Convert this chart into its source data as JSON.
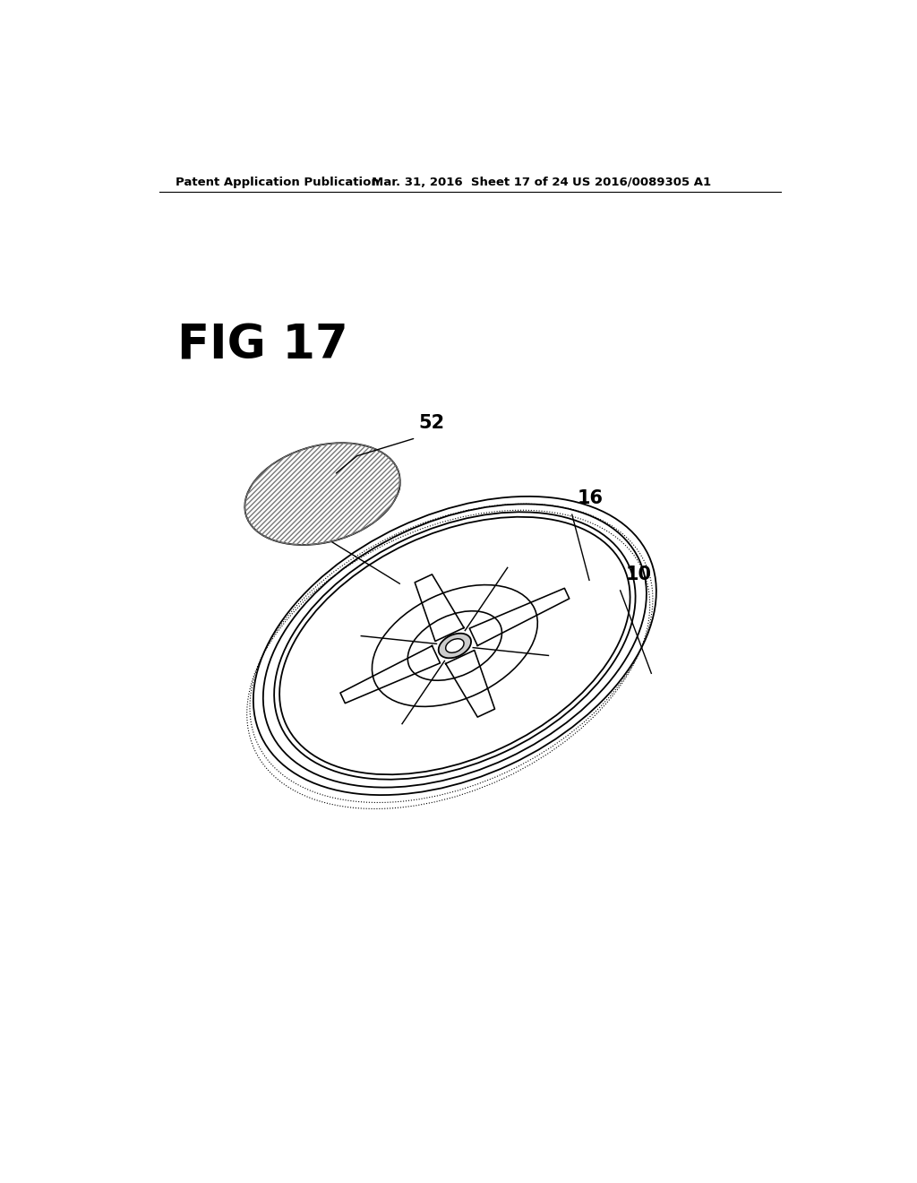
{
  "background_color": "#ffffff",
  "header_left": "Patent Application Publication",
  "header_center": "Mar. 31, 2016  Sheet 17 of 24",
  "header_right": "US 2016/0089305 A1",
  "fig_label": "FIG 17",
  "line_color": "#000000",
  "hatch_color": "#666666"
}
